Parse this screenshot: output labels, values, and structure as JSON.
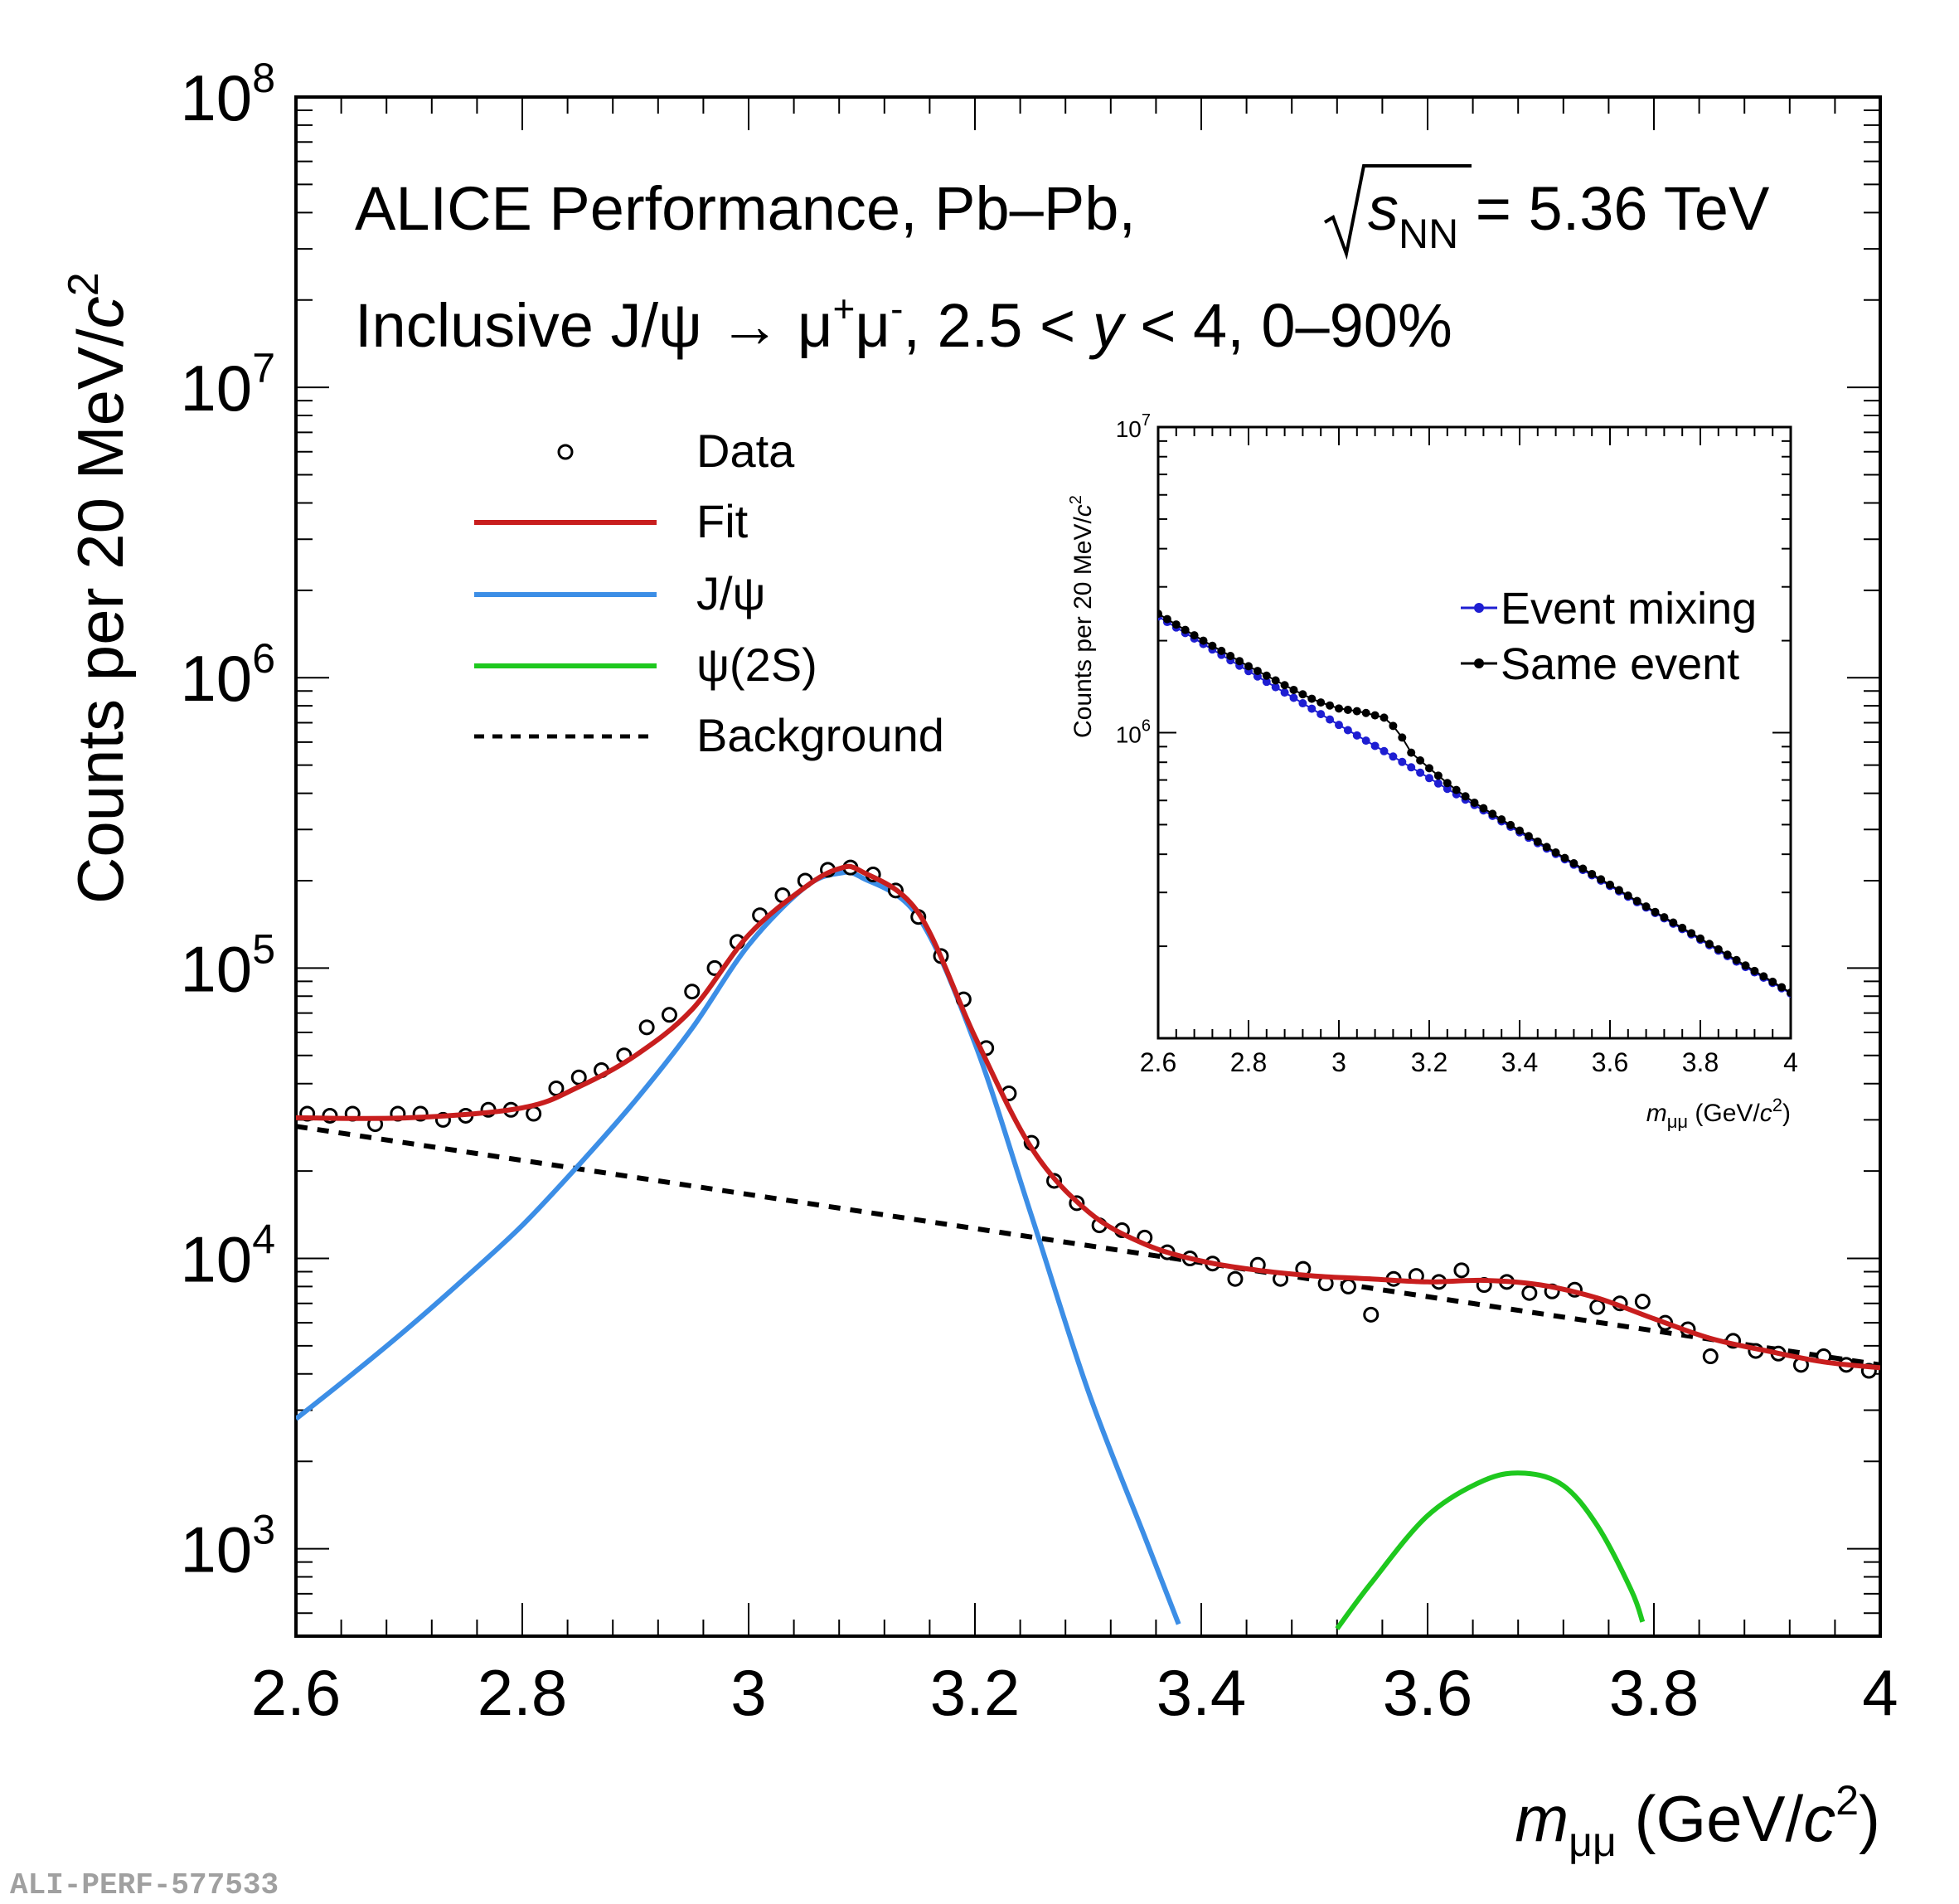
{
  "chart_data": [
    {
      "type": "scatter",
      "title": "ALICE Performance, Pb–Pb, √s_NN = 5.36 TeV",
      "subtitle": "Inclusive J/ψ → μ⁺μ⁻, 2.5 < y < 4, 0–90%",
      "xlabel": "m_μμ (GeV/c²)",
      "ylabel": "Counts per 20 MeV/c²",
      "xlim": [
        2.6,
        4.0
      ],
      "ylim": [
        500,
        100000000
      ],
      "yscale": "log",
      "x_ticks": [
        "2.6",
        "2.8",
        "3",
        "3.2",
        "3.4",
        "3.6",
        "3.8",
        "4"
      ],
      "y_ticks": [
        "10^3",
        "10^4",
        "10^5",
        "10^6",
        "10^7",
        "10^8"
      ],
      "legend_position": "top-left",
      "series": [
        {
          "name": "Data",
          "style": "open-circle-markers",
          "x": [
            2.61,
            2.63,
            2.65,
            2.67,
            2.69,
            2.71,
            2.73,
            2.75,
            2.77,
            2.79,
            2.81,
            2.83,
            2.85,
            2.87,
            2.89,
            2.91,
            2.93,
            2.95,
            2.97,
            2.99,
            3.01,
            3.03,
            3.05,
            3.07,
            3.09,
            3.11,
            3.13,
            3.15,
            3.17,
            3.19,
            3.21,
            3.23,
            3.25,
            3.27,
            3.29,
            3.31,
            3.33,
            3.35,
            3.37,
            3.39,
            3.41,
            3.43,
            3.45,
            3.47,
            3.49,
            3.51,
            3.53,
            3.55,
            3.57,
            3.59,
            3.61,
            3.63,
            3.65,
            3.67,
            3.69,
            3.71,
            3.73,
            3.75,
            3.77,
            3.79,
            3.81,
            3.83,
            3.85,
            3.87,
            3.89,
            3.91,
            3.93,
            3.95,
            3.97,
            3.99
          ],
          "values": [
            31500,
            31000,
            31500,
            29000,
            31500,
            31500,
            30000,
            31000,
            32500,
            32500,
            31500,
            38500,
            42000,
            44500,
            50000,
            62500,
            69000,
            83000,
            100000,
            123000,
            152000,
            178000,
            200000,
            218000,
            222000,
            210000,
            185000,
            150000,
            110000,
            78000,
            53000,
            37000,
            25000,
            18500,
            15500,
            13000,
            12500,
            11800,
            10500,
            10000,
            9600,
            8500,
            9500,
            8500,
            9200,
            8200,
            8000,
            6400,
            8500,
            8700,
            8300,
            9100,
            8100,
            8300,
            7600,
            7700,
            7800,
            6800,
            7000,
            7100,
            6000,
            5700,
            4600,
            5200,
            4800,
            4700,
            4300,
            4600,
            4300,
            4100
          ]
        },
        {
          "name": "Fit",
          "color": "#c81e1e",
          "x": [
            2.6,
            2.7,
            2.8,
            2.85,
            2.9,
            2.95,
            3.0,
            3.05,
            3.08,
            3.1,
            3.15,
            3.2,
            3.25,
            3.3,
            3.35,
            3.4,
            3.45,
            3.5,
            3.55,
            3.6,
            3.65,
            3.7,
            3.75,
            3.8,
            3.85,
            3.9,
            3.95,
            4.0
          ],
          "values": [
            30500,
            30500,
            33000,
            39000,
            50000,
            72000,
            130000,
            190000,
            220000,
            215000,
            155000,
            58000,
            24000,
            14500,
            11200,
            9800,
            9100,
            8700,
            8500,
            8300,
            8400,
            8100,
            7300,
            6200,
            5300,
            4800,
            4400,
            4200
          ]
        },
        {
          "name": "J/ψ",
          "color": "#3c8ee6",
          "x": [
            2.6,
            2.65,
            2.7,
            2.75,
            2.8,
            2.85,
            2.9,
            2.95,
            3.0,
            3.05,
            3.08,
            3.1,
            3.15,
            3.2,
            3.25,
            3.3,
            3.35,
            3.38
          ],
          "values": [
            2800,
            4000,
            5800,
            8600,
            13000,
            21000,
            35000,
            62000,
            120000,
            190000,
            212000,
            205000,
            150000,
            55000,
            14000,
            3500,
            1100,
            550
          ]
        },
        {
          "name": "ψ(2S)",
          "color": "#1ec81e",
          "x": [
            3.52,
            3.55,
            3.6,
            3.65,
            3.686,
            3.72,
            3.75,
            3.78,
            3.79
          ],
          "values": [
            530,
            760,
            1300,
            1720,
            1820,
            1650,
            1200,
            720,
            560
          ]
        },
        {
          "name": "Background",
          "color": "#000000",
          "style": "dashed",
          "x": [
            2.6,
            4.0
          ],
          "values": [
            28500,
            4300
          ]
        }
      ]
    },
    {
      "type": "scatter",
      "xlabel": "m_μμ (GeV/c²)",
      "ylabel": "Counts per 20 MeV/c²",
      "xlim": [
        2.6,
        4.0
      ],
      "ylim": [
        100000,
        10000000
      ],
      "yscale": "log",
      "x_ticks": [
        "2.6",
        "2.8",
        "3",
        "3.2",
        "3.4",
        "3.6",
        "3.8",
        "4"
      ],
      "y_ticks": [
        "10^6",
        "10^7"
      ],
      "legend_position": "top-right",
      "series": [
        {
          "name": "Event mixing",
          "color": "#1e1ed2",
          "x": [
            2.6,
            2.7,
            2.8,
            2.9,
            3.0,
            3.1,
            3.2,
            3.3,
            3.4,
            3.5,
            3.6,
            3.7,
            3.8,
            3.9,
            4.0
          ],
          "values": [
            2400000,
            1950000,
            1590000,
            1300000,
            1060000,
            870000,
            710000,
            580000,
            472000,
            385000,
            315000,
            257000,
            210000,
            171000,
            140000
          ]
        },
        {
          "name": "Same event",
          "color": "#000000",
          "x": [
            2.6,
            2.7,
            2.8,
            2.9,
            2.95,
            3.0,
            3.05,
            3.1,
            3.13,
            3.16,
            3.2,
            3.25,
            3.3,
            3.4,
            3.5,
            3.6,
            3.7,
            3.8,
            3.9,
            4.0
          ],
          "values": [
            2450000,
            2000000,
            1650000,
            1380000,
            1270000,
            1200000,
            1170000,
            1120000,
            1020000,
            860000,
            765000,
            665000,
            590000,
            478000,
            389000,
            318000,
            259000,
            212000,
            173000,
            141000
          ]
        }
      ]
    }
  ],
  "legend": {
    "data": "Data",
    "fit": "Fit",
    "jpsi": "J/ψ",
    "psi2s": "ψ(2S)",
    "background": "Background"
  },
  "inset_legend": {
    "mixing": "Event mixing",
    "same": "Same event"
  },
  "text": {
    "title_main": "ALICE Performance, Pb–Pb, ",
    "title_s": "s",
    "title_nn": "NN",
    "title_energy": " = 5.36 TeV",
    "sub_main": "Inclusive J/ψ → μ",
    "sub_plus": "+",
    "sub_mu": "μ",
    "sub_minus": "-",
    "sub_range": ", 2.5 < ",
    "sub_y": "y",
    "sub_end": " < 4, 0–90%",
    "ylabel_main": "Counts per 20 MeV/",
    "ylabel_c": "c",
    "ylabel_sq": "2",
    "xlabel_m": "m",
    "xlabel_sub": "μμ",
    "xlabel_unit": " (GeV/",
    "xlabel_c": "c",
    "xlabel_sq": "2",
    "xlabel_close": ")",
    "ten": "10",
    "watermark": "ALI-PERF-577533"
  },
  "colors": {
    "fit": "#c81e1e",
    "jpsi": "#3c8ee6",
    "psi2s": "#1ec81e",
    "background": "#000000",
    "event_mixing": "#1e1ed2",
    "same_event": "#000000"
  }
}
